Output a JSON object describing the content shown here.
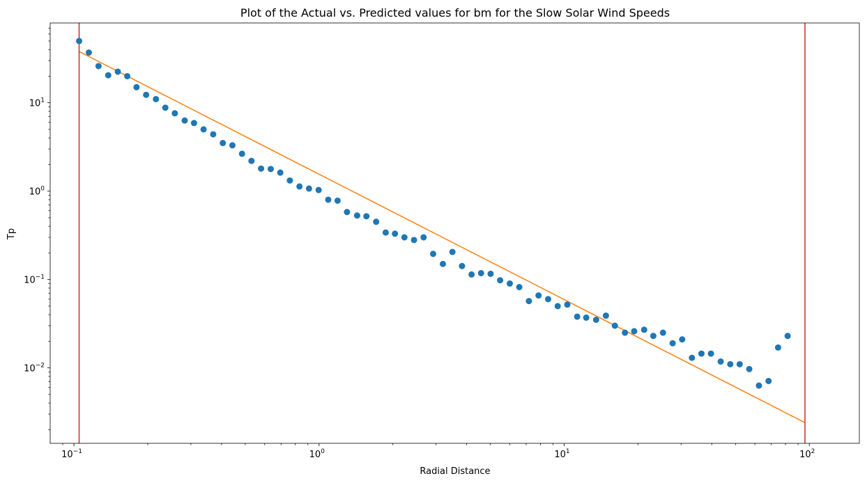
{
  "chart_data": {
    "type": "scatter",
    "title": "Plot of the Actual vs. Predicted values for bm for the Slow Solar Wind Speeds",
    "xlabel": "Radial Distance",
    "ylabel": "Tp",
    "xscale": "log",
    "yscale": "log",
    "xlim": [
      0.08,
      160
    ],
    "ylim": [
      0.0014,
      80
    ],
    "grid": false,
    "x_tick_labels": [
      {
        "value": 0.1,
        "base": "10",
        "exp": "−1"
      },
      {
        "value": 1,
        "base": "10",
        "exp": "0"
      },
      {
        "value": 10,
        "base": "10",
        "exp": "1"
      },
      {
        "value": 100,
        "base": "10",
        "exp": "2"
      }
    ],
    "y_tick_labels": [
      {
        "value": 0.01,
        "base": "10",
        "exp": "−2"
      },
      {
        "value": 0.1,
        "base": "10",
        "exp": "−1"
      },
      {
        "value": 1,
        "base": "10",
        "exp": "0"
      },
      {
        "value": 10,
        "base": "10",
        "exp": "1"
      }
    ],
    "series": [
      {
        "kind": "scatter",
        "color": "#1f77b4",
        "points": [
          [
            0.105,
            50
          ],
          [
            0.115,
            37
          ],
          [
            0.126,
            26
          ],
          [
            0.138,
            20.5
          ],
          [
            0.151,
            22.5
          ],
          [
            0.165,
            20
          ],
          [
            0.18,
            15
          ],
          [
            0.197,
            12.3
          ],
          [
            0.216,
            11
          ],
          [
            0.236,
            8.8
          ],
          [
            0.258,
            7.6
          ],
          [
            0.283,
            6.3
          ],
          [
            0.309,
            5.9
          ],
          [
            0.338,
            5.0
          ],
          [
            0.37,
            4.4
          ],
          [
            0.405,
            3.5
          ],
          [
            0.443,
            3.3
          ],
          [
            0.485,
            2.65
          ],
          [
            0.53,
            2.2
          ],
          [
            0.58,
            1.8
          ],
          [
            0.635,
            1.78
          ],
          [
            0.695,
            1.62
          ],
          [
            0.76,
            1.32
          ],
          [
            0.832,
            1.13
          ],
          [
            0.91,
            1.07
          ],
          [
            0.996,
            1.03
          ],
          [
            1.09,
            0.8
          ],
          [
            1.19,
            0.78
          ],
          [
            1.3,
            0.58
          ],
          [
            1.43,
            0.53
          ],
          [
            1.56,
            0.52
          ],
          [
            1.71,
            0.45
          ],
          [
            1.87,
            0.34
          ],
          [
            2.04,
            0.33
          ],
          [
            2.23,
            0.3
          ],
          [
            2.44,
            0.28
          ],
          [
            2.67,
            0.3
          ],
          [
            2.92,
            0.195
          ],
          [
            3.2,
            0.15
          ],
          [
            3.5,
            0.205
          ],
          [
            3.83,
            0.142
          ],
          [
            4.19,
            0.114
          ],
          [
            4.58,
            0.118
          ],
          [
            5.01,
            0.116
          ],
          [
            5.48,
            0.098
          ],
          [
            6.0,
            0.09
          ],
          [
            6.56,
            0.082
          ],
          [
            7.18,
            0.057
          ],
          [
            7.86,
            0.066
          ],
          [
            8.6,
            0.06
          ],
          [
            9.41,
            0.05
          ],
          [
            10.3,
            0.052
          ],
          [
            11.3,
            0.038
          ],
          [
            12.3,
            0.037
          ],
          [
            13.5,
            0.035
          ],
          [
            14.8,
            0.039
          ],
          [
            16.1,
            0.03
          ],
          [
            17.7,
            0.025
          ],
          [
            19.3,
            0.026
          ],
          [
            21.2,
            0.027
          ],
          [
            23.1,
            0.023
          ],
          [
            25.3,
            0.025
          ],
          [
            27.7,
            0.019
          ],
          [
            30.3,
            0.021
          ],
          [
            33.2,
            0.013
          ],
          [
            36.3,
            0.0145
          ],
          [
            39.7,
            0.0145
          ],
          [
            43.5,
            0.0118
          ],
          [
            47.6,
            0.011
          ],
          [
            52.0,
            0.011
          ],
          [
            56.9,
            0.0097
          ],
          [
            62.3,
            0.0063
          ],
          [
            68.2,
            0.0071
          ],
          [
            74.6,
            0.017
          ],
          [
            81.6,
            0.023
          ]
        ]
      },
      {
        "kind": "line",
        "color": "#ff7f0e",
        "points": [
          [
            0.105,
            38
          ],
          [
            96,
            0.0024
          ]
        ]
      },
      {
        "kind": "vline",
        "color": "#d62728",
        "x": 0.105
      },
      {
        "kind": "vline",
        "color": "#d62728",
        "x": 96
      }
    ]
  }
}
